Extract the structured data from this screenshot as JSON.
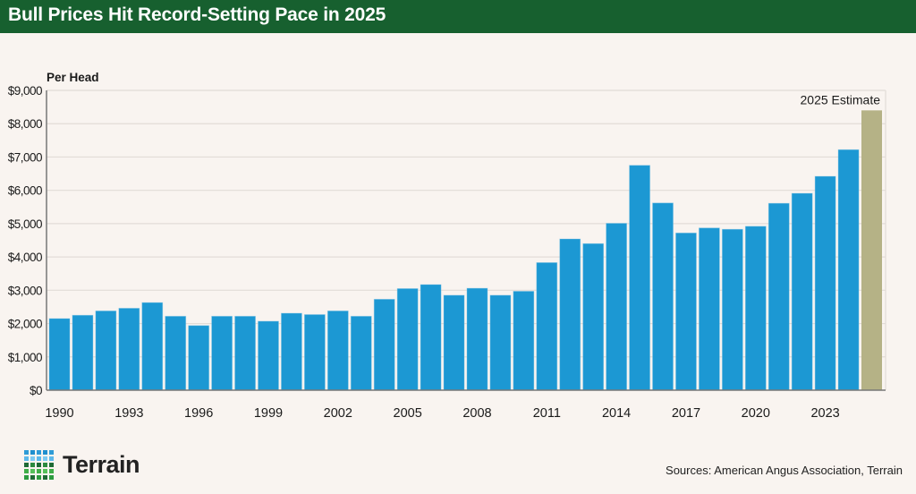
{
  "title": "Bull Prices Hit Record-Setting Pace in 2025",
  "source": "Sources: American Angus Association, Terrain",
  "logo_text": "Terrain",
  "colors": {
    "header": "#17602f",
    "bar": "#1c98d3",
    "estimate_bar": "#b5b286",
    "background": "#f9f4f0"
  },
  "chart_data": {
    "type": "bar",
    "title": "Bull Prices Hit Record-Setting Pace in 2025",
    "ylabel": "Per Head",
    "xlabel": "",
    "ylim": [
      0,
      9000
    ],
    "yticks": [
      0,
      1000,
      2000,
      3000,
      4000,
      5000,
      6000,
      7000,
      8000,
      9000
    ],
    "ytick_labels": [
      "$0",
      "$1,000",
      "$2,000",
      "$3,000",
      "$4,000",
      "$5,000",
      "$6,000",
      "$7,000",
      "$8,000",
      "$9,000"
    ],
    "xtick_labels": [
      "1990",
      "1993",
      "1996",
      "1999",
      "2002",
      "2005",
      "2008",
      "2011",
      "2014",
      "2017",
      "2020",
      "2023"
    ],
    "grid": "horizontal",
    "categories": [
      1990,
      1991,
      1992,
      1993,
      1994,
      1995,
      1996,
      1997,
      1998,
      1999,
      2000,
      2001,
      2002,
      2003,
      2004,
      2005,
      2006,
      2007,
      2008,
      2009,
      2010,
      2011,
      2012,
      2013,
      2014,
      2015,
      2016,
      2017,
      2018,
      2019,
      2020,
      2021,
      2022,
      2023,
      2024,
      2025
    ],
    "values": [
      2150,
      2250,
      2380,
      2460,
      2630,
      2220,
      1940,
      2220,
      2220,
      2070,
      2310,
      2270,
      2380,
      2220,
      2730,
      3050,
      3170,
      2850,
      3060,
      2850,
      2970,
      3830,
      4540,
      4400,
      5010,
      6750,
      5620,
      4720,
      4870,
      4830,
      4920,
      5610,
      5910,
      6420,
      7220,
      8400
    ],
    "estimate_category": 2025,
    "annotation": "2025 Estimate"
  }
}
